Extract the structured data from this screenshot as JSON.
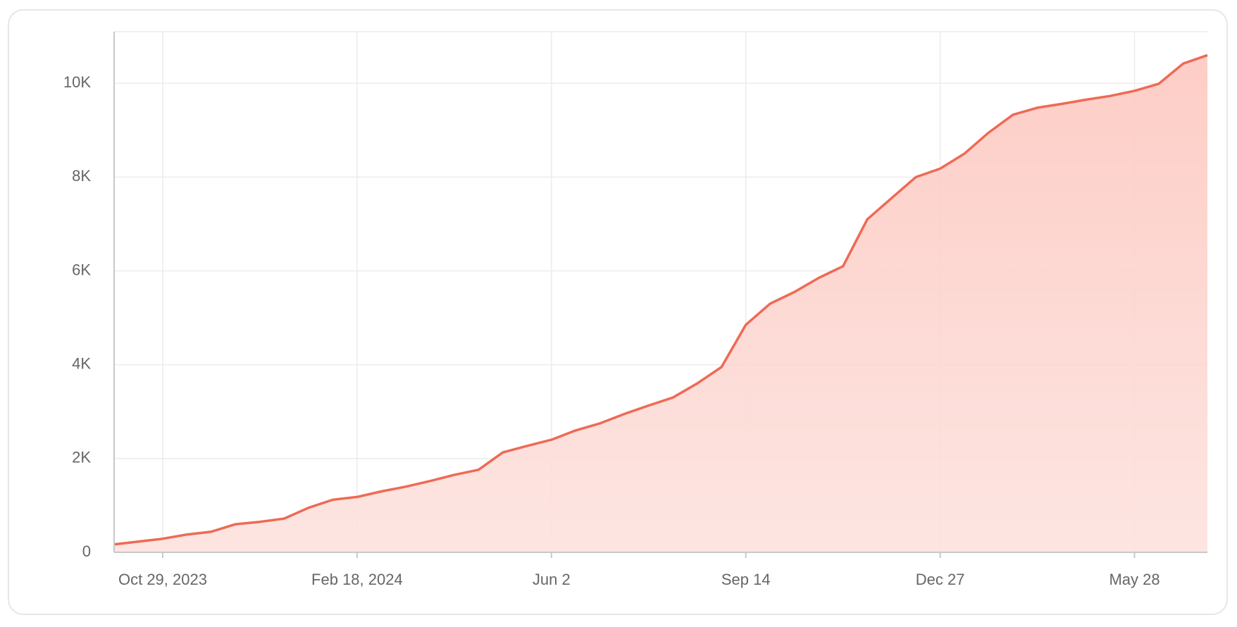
{
  "chart_data": {
    "type": "area",
    "categories": [
      null,
      null,
      "Oct 29, 2023",
      null,
      null,
      null,
      null,
      null,
      null,
      null,
      "Feb 18, 2024",
      null,
      null,
      null,
      null,
      null,
      null,
      null,
      "Jun 2",
      null,
      null,
      null,
      null,
      null,
      null,
      null,
      "Sep 14",
      null,
      null,
      null,
      null,
      null,
      null,
      null,
      "Dec 27",
      null,
      null,
      null,
      null,
      null,
      null,
      null,
      "May 28",
      null,
      null,
      null
    ],
    "values": [
      170,
      230,
      290,
      380,
      440,
      600,
      650,
      720,
      950,
      1120,
      1180,
      1300,
      1400,
      1520,
      1650,
      1760,
      2130,
      2270,
      2400,
      2600,
      2750,
      2950,
      3130,
      3300,
      3600,
      3950,
      4850,
      5300,
      5550,
      5850,
      6100,
      7100,
      7550,
      8000,
      8180,
      8500,
      8950,
      9330,
      9480,
      9560,
      9650,
      9730,
      9840,
      9990,
      10420,
      10600
    ],
    "color": "#ee6a55",
    "ylim": [
      0,
      11100
    ],
    "yticks": [
      0,
      {
        "value": 2000,
        "label": "2K"
      },
      {
        "value": 4000,
        "label": "4K"
      },
      {
        "value": 6000,
        "label": "6K"
      },
      {
        "value": 8000,
        "label": "8K"
      },
      {
        "value": 10000,
        "label": "10K"
      }
    ],
    "grid": true
  }
}
